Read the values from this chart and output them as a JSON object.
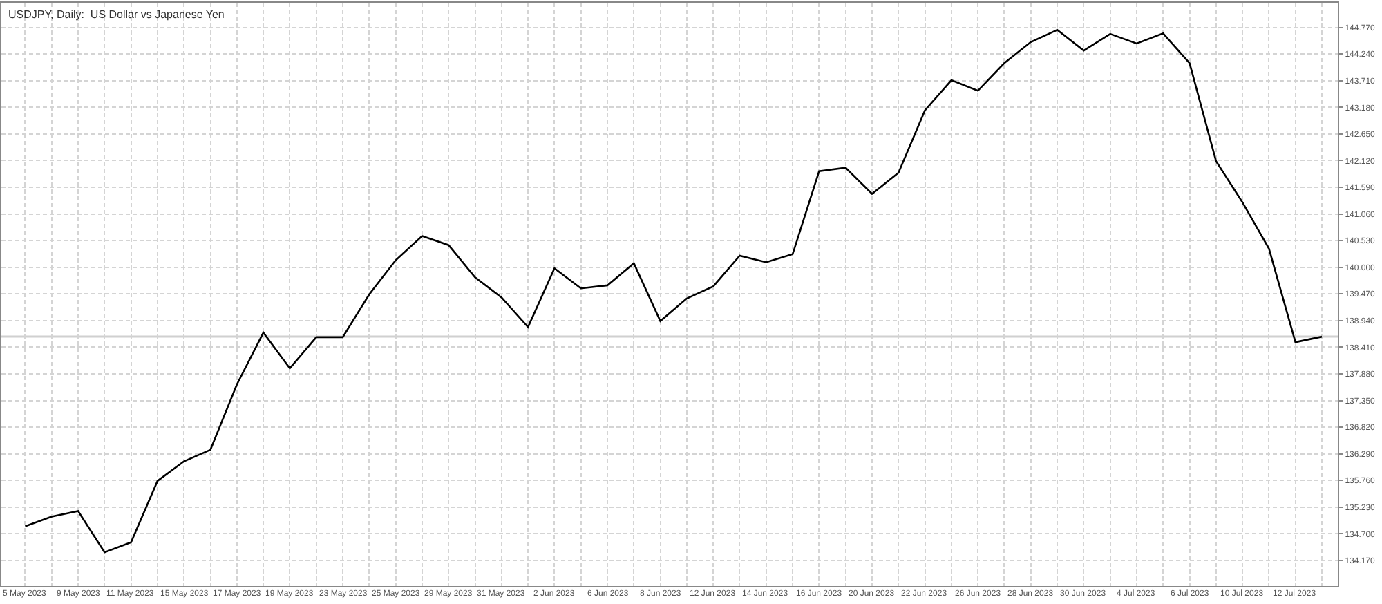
{
  "chart_data": {
    "type": "line",
    "title": "USDJPY, Daily:  US Dollar vs Japanese Yen",
    "categories": [
      "5 May 2023",
      null,
      "9 May 2023",
      null,
      "11 May 2023",
      null,
      "15 May 2023",
      null,
      "17 May 2023",
      null,
      "19 May 2023",
      null,
      "23 May 2023",
      null,
      "25 May 2023",
      null,
      "29 May 2023",
      null,
      "31 May 2023",
      null,
      "2 Jun 2023",
      null,
      "6 Jun 2023",
      null,
      "8 Jun 2023",
      null,
      "12 Jun 2023",
      null,
      "14 Jun 2023",
      null,
      "16 Jun 2023",
      null,
      "20 Jun 2023",
      null,
      "22 Jun 2023",
      null,
      "26 Jun 2023",
      null,
      "28 Jun 2023",
      null,
      "30 Jun 2023",
      null,
      "4 Jul 2023",
      null,
      "6 Jul 2023",
      null,
      "10 Jul 2023",
      null,
      "12 Jul 2023",
      null
    ],
    "series": [
      {
        "color": "#000000",
        "values": [
          134.85,
          135.04,
          135.15,
          134.33,
          134.53,
          135.75,
          136.14,
          136.37,
          137.67,
          138.7,
          137.99,
          138.61,
          138.61,
          139.46,
          140.14,
          140.62,
          140.44,
          139.8,
          139.4,
          138.81,
          139.98,
          139.58,
          139.64,
          140.08,
          138.93,
          139.38,
          139.62,
          140.23,
          140.1,
          140.26,
          141.91,
          141.98,
          141.46,
          141.88,
          143.12,
          143.72,
          143.51,
          144.06,
          144.48,
          144.72,
          144.31,
          144.64,
          144.45,
          144.65,
          144.06,
          142.11,
          141.29,
          140.37,
          138.51,
          138.62
        ]
      }
    ],
    "ylim": [
      133.66,
      145.26
    ],
    "yticks": [
      {
        "value": 134.17,
        "label": "134.170"
      },
      {
        "value": 134.7,
        "label": "134.700"
      },
      {
        "value": 135.23,
        "label": "135.230"
      },
      {
        "value": 135.76,
        "label": "135.760"
      },
      {
        "value": 136.29,
        "label": "136.290"
      },
      {
        "value": 136.82,
        "label": "136.820"
      },
      {
        "value": 137.35,
        "label": "137.350"
      },
      {
        "value": 137.88,
        "label": "137.880"
      },
      {
        "value": 138.41,
        "label": "138.410"
      },
      {
        "value": 138.94,
        "label": "138.940"
      },
      {
        "value": 139.47,
        "label": "139.470"
      },
      {
        "value": 140,
        "label": "140.000"
      },
      {
        "value": 140.53,
        "label": "140.530"
      },
      {
        "value": 141.06,
        "label": "141.060"
      },
      {
        "value": 141.59,
        "label": "141.590"
      },
      {
        "value": 142.12,
        "label": "142.120"
      },
      {
        "value": 142.65,
        "label": "142.650"
      },
      {
        "value": 143.18,
        "label": "143.180"
      },
      {
        "value": 143.71,
        "label": "143.710"
      },
      {
        "value": 144.24,
        "label": "144.240"
      },
      {
        "value": 144.77,
        "label": "144.770"
      }
    ],
    "ref_lines": [
      {
        "axis": "y",
        "value": 138.62,
        "color": "#d0d0d0"
      }
    ],
    "grid": true,
    "marker": "none",
    "line_style": "solid"
  }
}
